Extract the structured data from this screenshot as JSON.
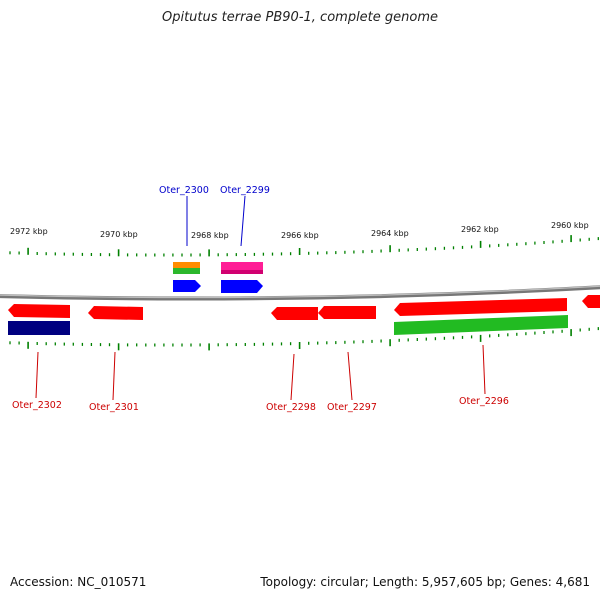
{
  "title": "Opitutus terrae PB90-1, complete genome",
  "footer": {
    "accession": "Accession: NC_010571",
    "info": "Topology: circular; Length: 5,957,605 bp; Genes: 4,681"
  },
  "colors": {
    "gene_forward": "#ff0000",
    "gene_blue": "#0000ff",
    "gene_navy": "#00007f",
    "gene_green": "#22bb22",
    "gene_orange": "#ff8c00",
    "gene_magenta": "#ff1493",
    "tick": "#008000",
    "backbone": "#7f7f7f",
    "label_blue": "#0000cc",
    "label_red": "#cc0000"
  },
  "scale_labels": [
    "2972 kbp",
    "2970 kbp",
    "2968 kbp",
    "2966 kbp",
    "2964 kbp",
    "2962 kbp",
    "2960 kbp"
  ],
  "gene_labels_top": [
    "Oter_2300",
    "Oter_2299"
  ],
  "gene_labels_bottom": [
    "Oter_2302",
    "Oter_2301",
    "Oter_2298",
    "Oter_2297",
    "Oter_2296"
  ]
}
